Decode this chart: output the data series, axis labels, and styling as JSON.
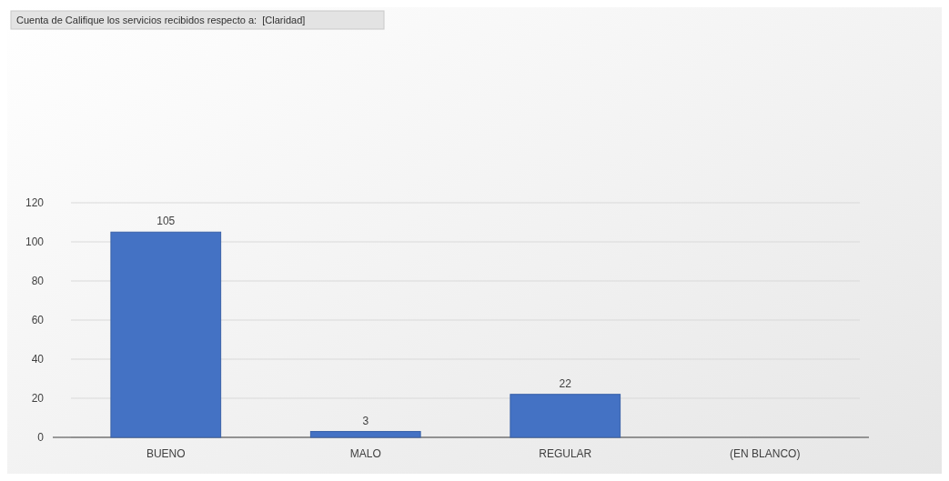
{
  "chart_data": {
    "type": "bar",
    "title": "Cuenta de Califique los servicios recibidos respecto a:  [Claridad]",
    "categories": [
      "BUENO",
      "MALO",
      "REGULAR",
      "(EN BLANCO)"
    ],
    "values": [
      105,
      3,
      22,
      null
    ],
    "color": "#4472c4",
    "ylim": [
      0,
      120
    ],
    "yticks": [
      0,
      20,
      40,
      60,
      80,
      100,
      120
    ],
    "grid": "y",
    "data_labels": true
  }
}
